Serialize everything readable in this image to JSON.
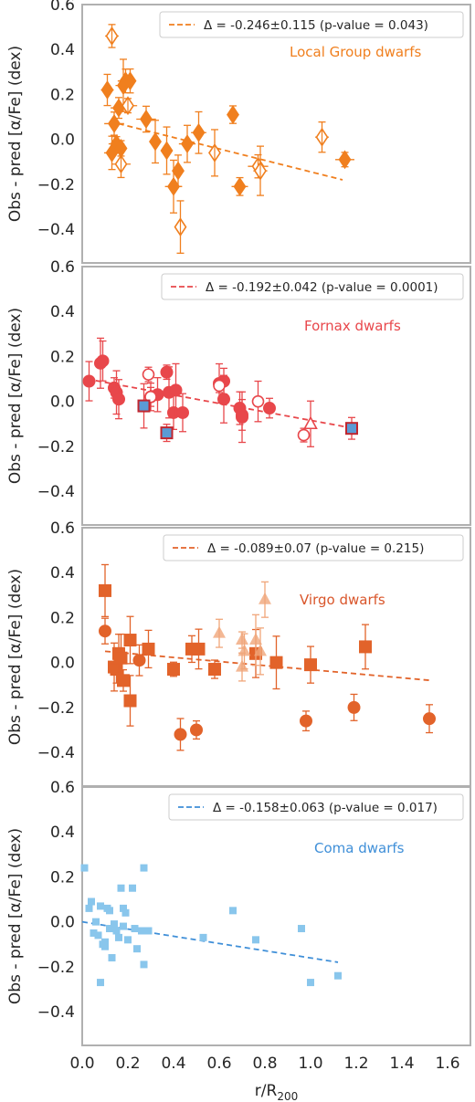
{
  "chart_data": [
    {
      "type": "scatter",
      "panel": "Local Group dwarfs",
      "color": "#f07f1e",
      "ylabel": "Obs - pred [α/Fe] (dex)",
      "ylim": [
        -0.55,
        0.6
      ],
      "xlim": [
        0,
        1.7
      ],
      "yticks": [
        "−0.4",
        "−0.2",
        "0.0",
        "0.2",
        "0.4",
        "0.6"
      ],
      "legend": "Δ = -0.246±0.115 (p-value = 0.043)",
      "label": "Local Group dwarfs",
      "fit": {
        "x": [
          0.12,
          1.14
        ],
        "y": [
          0.08,
          -0.18
        ]
      },
      "series": [
        {
          "name": "filled",
          "marker": "diamond-filled",
          "points": [
            [
              0.11,
              0.22
            ],
            [
              0.13,
              -0.06
            ],
            [
              0.14,
              0.07
            ],
            [
              0.15,
              -0.02
            ],
            [
              0.16,
              0.14
            ],
            [
              0.17,
              -0.04
            ],
            [
              0.18,
              0.24
            ],
            [
              0.19,
              0.26
            ],
            [
              0.21,
              0.26
            ],
            [
              0.28,
              0.09
            ],
            [
              0.32,
              -0.01
            ],
            [
              0.37,
              -0.05
            ],
            [
              0.4,
              -0.21
            ],
            [
              0.42,
              -0.14
            ],
            [
              0.46,
              -0.02
            ],
            [
              0.51,
              0.03
            ],
            [
              0.66,
              0.11
            ],
            [
              0.69,
              -0.21
            ],
            [
              1.15,
              -0.09
            ]
          ]
        },
        {
          "name": "open",
          "marker": "diamond-open",
          "points": [
            [
              0.13,
              0.46
            ],
            [
              0.17,
              -0.11
            ],
            [
              0.2,
              0.15
            ],
            [
              0.43,
              -0.39
            ],
            [
              0.58,
              -0.06
            ],
            [
              0.77,
              -0.12
            ],
            [
              0.78,
              -0.14
            ],
            [
              1.05,
              0.01
            ]
          ]
        }
      ]
    },
    {
      "type": "scatter",
      "panel": "Fornax dwarfs",
      "color": "#e8474b",
      "ylabel": "Obs - pred [α/Fe] (dex)",
      "ylim": [
        -0.55,
        0.6
      ],
      "xlim": [
        0,
        1.7
      ],
      "yticks": [
        "−0.4",
        "−0.2",
        "0.0",
        "0.2",
        "0.4",
        "0.6"
      ],
      "legend": "Δ = -0.192±0.042 (p-value = 0.0001)",
      "label": "Fornax dwarfs",
      "fit": {
        "x": [
          0.02,
          1.19
        ],
        "y": [
          0.1,
          -0.12
        ]
      },
      "series": [
        {
          "name": "filled",
          "marker": "circle-filled",
          "points": [
            [
              0.03,
              0.09
            ],
            [
              0.08,
              0.17
            ],
            [
              0.09,
              0.18
            ],
            [
              0.14,
              0.06
            ],
            [
              0.15,
              0.04
            ],
            [
              0.16,
              0.01
            ],
            [
              0.3,
              0.02
            ],
            [
              0.33,
              0.03
            ],
            [
              0.37,
              0.13
            ],
            [
              0.38,
              0.04
            ],
            [
              0.4,
              -0.05
            ],
            [
              0.41,
              0.05
            ],
            [
              0.44,
              -0.05
            ],
            [
              0.6,
              0.08
            ],
            [
              0.62,
              0.09
            ],
            [
              0.62,
              0.01
            ],
            [
              0.69,
              -0.03
            ],
            [
              0.7,
              -0.06
            ],
            [
              0.7,
              -0.07
            ],
            [
              0.82,
              -0.03
            ]
          ]
        },
        {
          "name": "open",
          "marker": "circle-open",
          "points": [
            [
              0.29,
              0.12
            ],
            [
              0.3,
              0.02
            ],
            [
              0.6,
              0.07
            ],
            [
              0.77,
              0.0
            ],
            [
              0.97,
              -0.15
            ]
          ]
        },
        {
          "name": "triangle-open",
          "marker": "triangle-open",
          "points": [
            [
              1.0,
              -0.1
            ]
          ]
        },
        {
          "name": "squares",
          "marker": "square-blue",
          "points": [
            [
              0.27,
              -0.02
            ],
            [
              0.37,
              -0.14
            ],
            [
              1.18,
              -0.12
            ]
          ]
        }
      ]
    },
    {
      "type": "scatter",
      "panel": "Virgo dwarfs",
      "color": "#e2632a",
      "ylabel": "Obs - pred [α/Fe] (dex)",
      "ylim": [
        -0.55,
        0.6
      ],
      "xlim": [
        0,
        1.7
      ],
      "yticks": [
        "−0.4",
        "−0.2",
        "0.0",
        "0.2",
        "0.4",
        "0.6"
      ],
      "legend": "Δ = -0.089±0.07 (p-value = 0.215)",
      "label": "Virgo dwarfs",
      "fit": {
        "x": [
          0.1,
          1.53
        ],
        "y": [
          0.05,
          -0.08
        ]
      },
      "series": [
        {
          "name": "squares",
          "marker": "square-filled",
          "points": [
            [
              0.1,
              0.32
            ],
            [
              0.14,
              -0.02
            ],
            [
              0.15,
              -0.03
            ],
            [
              0.16,
              0.04
            ],
            [
              0.17,
              0.02
            ],
            [
              0.18,
              -0.08
            ],
            [
              0.21,
              0.1
            ],
            [
              0.21,
              -0.17
            ],
            [
              0.29,
              0.06
            ],
            [
              0.4,
              -0.03
            ],
            [
              0.48,
              0.06
            ],
            [
              0.51,
              0.06
            ],
            [
              0.58,
              -0.03
            ],
            [
              0.76,
              0.04
            ],
            [
              0.85,
              0.0
            ],
            [
              1.0,
              -0.01
            ],
            [
              1.24,
              0.07
            ]
          ]
        },
        {
          "name": "circles",
          "marker": "circle-filled",
          "points": [
            [
              0.1,
              0.14
            ],
            [
              0.25,
              0.01
            ],
            [
              0.43,
              -0.32
            ],
            [
              0.5,
              -0.3
            ],
            [
              0.98,
              -0.26
            ],
            [
              1.19,
              -0.2
            ],
            [
              1.52,
              -0.25
            ]
          ]
        },
        {
          "name": "triangles",
          "marker": "triangle-light",
          "points": [
            [
              0.6,
              0.13
            ],
            [
              0.7,
              0.1
            ],
            [
              0.7,
              -0.02
            ],
            [
              0.71,
              0.05
            ],
            [
              0.76,
              0.1
            ],
            [
              0.78,
              0.05
            ],
            [
              0.8,
              0.28
            ]
          ]
        }
      ]
    },
    {
      "type": "scatter",
      "panel": "Coma dwarfs",
      "color": "#3f8fd8",
      "ylabel": "Obs - pred [α/Fe] (dex)",
      "xlabel": "r/R200",
      "ylim": [
        -0.55,
        0.6
      ],
      "xlim": [
        0,
        1.7
      ],
      "yticks": [
        "−0.4",
        "−0.2",
        "0.0",
        "0.2",
        "0.4",
        "0.6"
      ],
      "xticks": [
        "0.0",
        "0.2",
        "0.4",
        "0.6",
        "0.8",
        "1.0",
        "1.2",
        "1.4",
        "1.6"
      ],
      "legend": "Δ = -0.158±0.063 (p-value = 0.017)",
      "label": "Coma dwarfs",
      "fit": {
        "x": [
          0.0,
          1.12
        ],
        "y": [
          0.0,
          -0.18
        ]
      },
      "series": [
        {
          "name": "squares",
          "marker": "square-light",
          "points": [
            [
              0.01,
              0.24
            ],
            [
              0.03,
              0.06
            ],
            [
              0.04,
              0.09
            ],
            [
              0.05,
              -0.05
            ],
            [
              0.06,
              0.0
            ],
            [
              0.07,
              -0.06
            ],
            [
              0.08,
              -0.27
            ],
            [
              0.08,
              0.07
            ],
            [
              0.09,
              -0.1
            ],
            [
              0.1,
              -0.09
            ],
            [
              0.1,
              -0.11
            ],
            [
              0.11,
              0.06
            ],
            [
              0.12,
              -0.03
            ],
            [
              0.12,
              0.05
            ],
            [
              0.13,
              -0.16
            ],
            [
              0.14,
              -0.01
            ],
            [
              0.15,
              -0.04
            ],
            [
              0.16,
              -0.07
            ],
            [
              0.17,
              0.15
            ],
            [
              0.18,
              -0.02
            ],
            [
              0.18,
              0.06
            ],
            [
              0.19,
              0.04
            ],
            [
              0.2,
              -0.08
            ],
            [
              0.22,
              0.15
            ],
            [
              0.23,
              -0.03
            ],
            [
              0.24,
              -0.12
            ],
            [
              0.26,
              -0.04
            ],
            [
              0.27,
              0.24
            ],
            [
              0.27,
              -0.19
            ],
            [
              0.29,
              -0.04
            ],
            [
              0.53,
              -0.07
            ],
            [
              0.66,
              0.05
            ],
            [
              0.76,
              -0.08
            ],
            [
              0.96,
              -0.03
            ],
            [
              1.0,
              -0.27
            ],
            [
              1.12,
              -0.24
            ]
          ]
        }
      ]
    }
  ]
}
